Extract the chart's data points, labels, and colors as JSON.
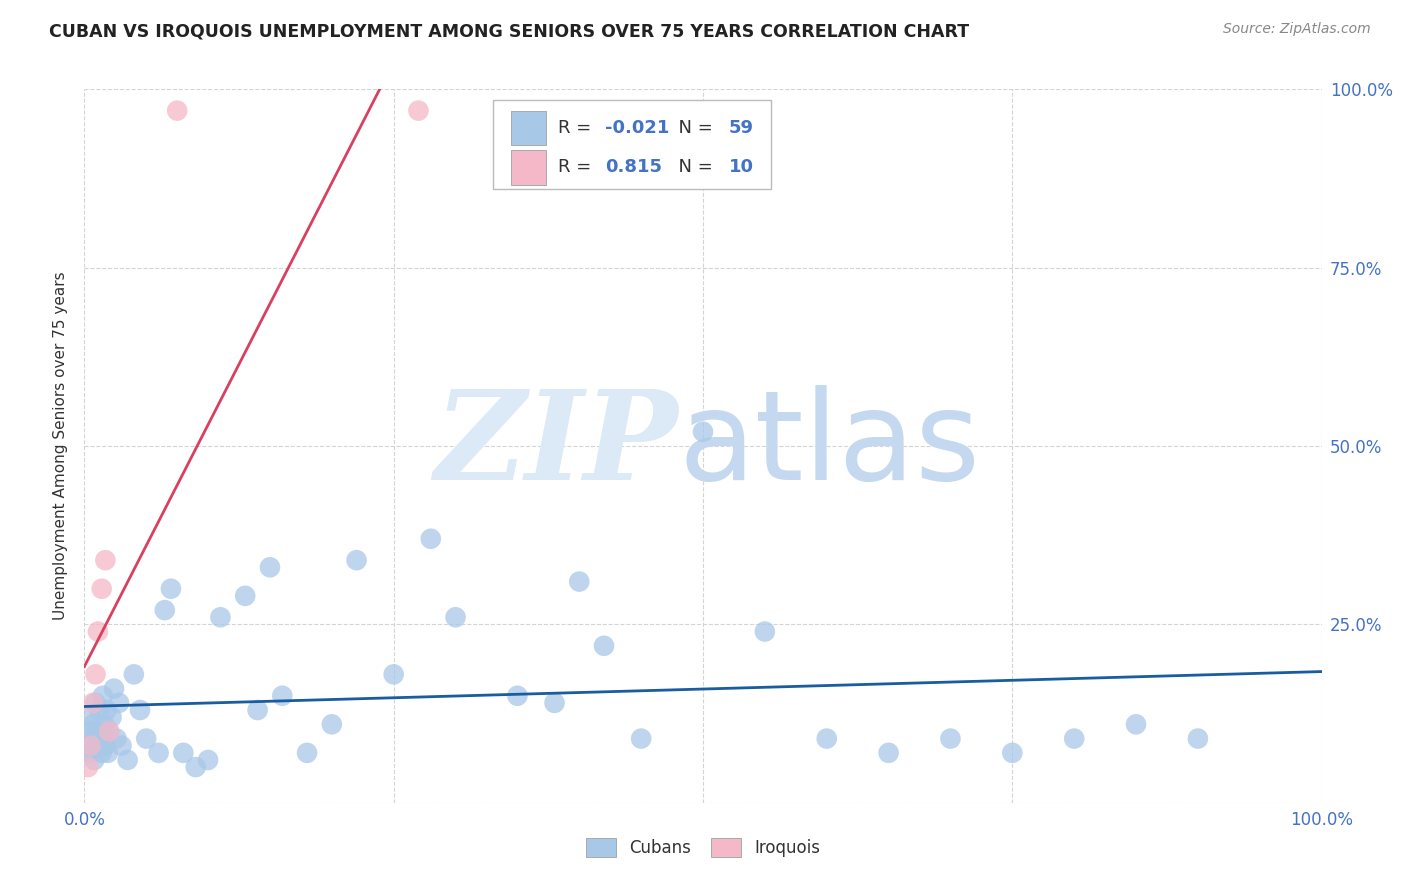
{
  "title": "CUBAN VS IROQUOIS UNEMPLOYMENT AMONG SENIORS OVER 75 YEARS CORRELATION CHART",
  "source": "Source: ZipAtlas.com",
  "ylabel": "Unemployment Among Seniors over 75 years",
  "xlim": [
    0.0,
    1.0
  ],
  "ylim": [
    0.0,
    1.0
  ],
  "cubans_x": [
    0.002,
    0.003,
    0.004,
    0.005,
    0.006,
    0.007,
    0.008,
    0.009,
    0.01,
    0.011,
    0.012,
    0.013,
    0.014,
    0.015,
    0.016,
    0.017,
    0.018,
    0.019,
    0.02,
    0.022,
    0.024,
    0.026,
    0.028,
    0.03,
    0.035,
    0.04,
    0.045,
    0.05,
    0.06,
    0.065,
    0.07,
    0.08,
    0.09,
    0.1,
    0.11,
    0.13,
    0.14,
    0.15,
    0.16,
    0.18,
    0.2,
    0.22,
    0.25,
    0.28,
    0.3,
    0.35,
    0.38,
    0.4,
    0.42,
    0.45,
    0.5,
    0.55,
    0.6,
    0.65,
    0.7,
    0.75,
    0.8,
    0.85,
    0.9
  ],
  "cubans_y": [
    0.08,
    0.1,
    0.07,
    0.12,
    0.09,
    0.11,
    0.06,
    0.14,
    0.1,
    0.08,
    0.13,
    0.09,
    0.07,
    0.15,
    0.11,
    0.08,
    0.13,
    0.07,
    0.1,
    0.12,
    0.16,
    0.09,
    0.14,
    0.08,
    0.06,
    0.18,
    0.13,
    0.09,
    0.07,
    0.27,
    0.3,
    0.07,
    0.05,
    0.06,
    0.26,
    0.29,
    0.13,
    0.33,
    0.15,
    0.07,
    0.11,
    0.34,
    0.18,
    0.37,
    0.26,
    0.15,
    0.14,
    0.31,
    0.22,
    0.09,
    0.52,
    0.24,
    0.09,
    0.07,
    0.09,
    0.07,
    0.09,
    0.11,
    0.09
  ],
  "iroquois_x": [
    0.003,
    0.005,
    0.007,
    0.009,
    0.011,
    0.014,
    0.017,
    0.02,
    0.075,
    0.27
  ],
  "iroquois_y": [
    0.05,
    0.08,
    0.14,
    0.18,
    0.24,
    0.3,
    0.34,
    0.1,
    0.97,
    0.97
  ],
  "cubans_line_color": "#1a5ca0",
  "iroquois_line_color": "#d94060",
  "scatter_blue": "#a8c8e8",
  "scatter_pink": "#f4b8c8",
  "grid_color": "#d0d0d0",
  "title_color": "#222222",
  "source_color": "#888888",
  "tick_color": "#4472c4",
  "background_color": "#ffffff",
  "R_cubans": "-0.021",
  "N_cubans": "59",
  "R_iroquois": "0.815",
  "N_iroquois": "10",
  "label_cubans": "Cubans",
  "label_iroquois": "Iroquois"
}
